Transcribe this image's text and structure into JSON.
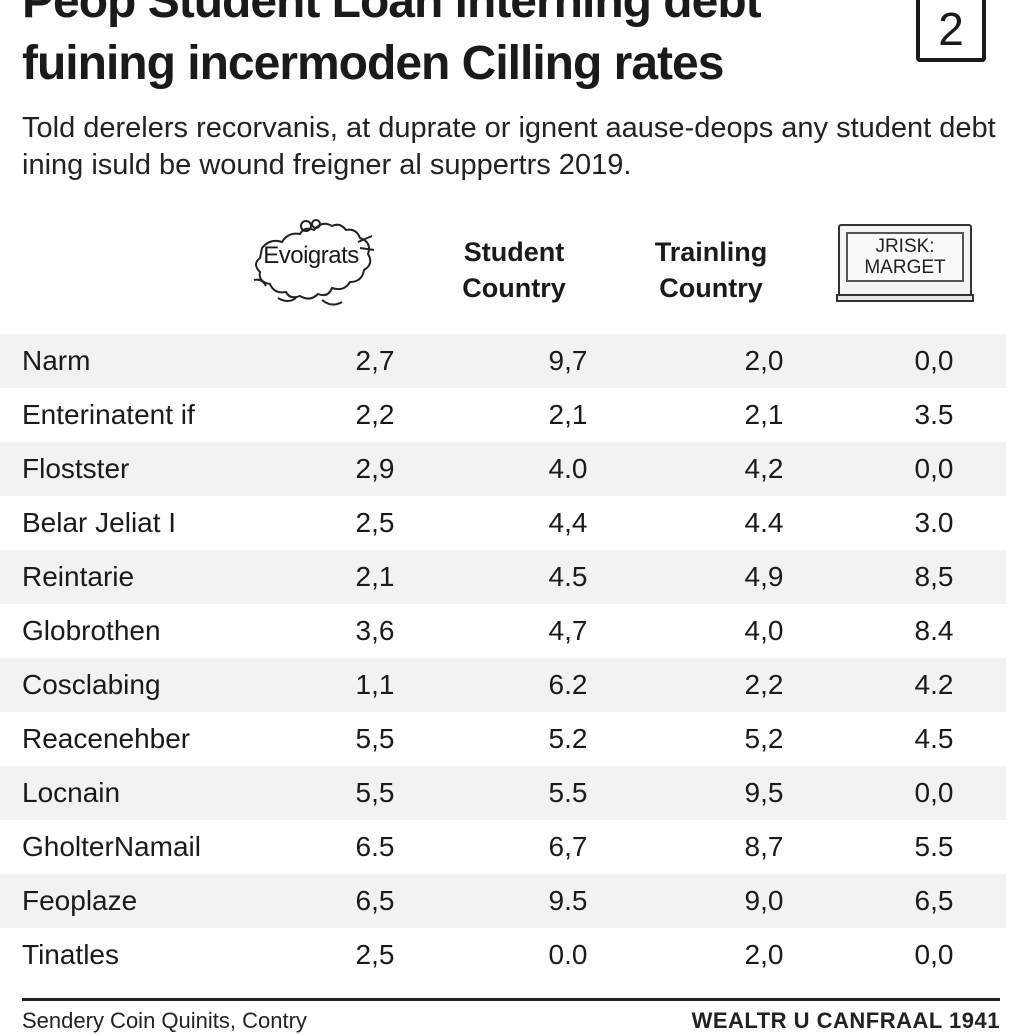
{
  "header": {
    "title_line1": "Peop Student Loan interning debt",
    "title_line2": "fuining incermoden Cilling rates",
    "badge": "2",
    "subtitle": "Told derelers recorvanis, at duprate or ignent aause-deops any student debt ining isuld be wound freigner al suppertrs 2019."
  },
  "icons": {
    "map": "map-icon",
    "market": "monitor-sign-icon"
  },
  "footer": {
    "left": "Sendery Coin Quinits, Contry",
    "right": "WEALTR U CANFRAAL 1941"
  },
  "chart_data": {
    "type": "table",
    "columns": [
      "Evoigrats",
      "Student Country",
      "Trainling Country",
      "JRISK: MARGET"
    ],
    "column_lines": [
      [
        "Evoigrats"
      ],
      [
        "Student",
        "Country"
      ],
      [
        "Trainling",
        "Country"
      ],
      [
        "JRISK:",
        "MARGET"
      ]
    ],
    "rows": [
      {
        "label": "Narm",
        "values": [
          "2,7",
          "9,7",
          "2,0",
          "0,0"
        ]
      },
      {
        "label": "Enterinatent if",
        "values": [
          "2,2",
          "2,1",
          "2,1",
          "3.5"
        ]
      },
      {
        "label": "Flostster",
        "values": [
          "2,9",
          "4.0",
          "4,2",
          "0,0"
        ]
      },
      {
        "label": "Belar Jeliat I",
        "values": [
          "2,5",
          "4,4",
          "4.4",
          "3.0"
        ]
      },
      {
        "label": "Reintarie",
        "values": [
          "2,1",
          "4.5",
          "4,9",
          "8,5"
        ]
      },
      {
        "label": "Globrothen",
        "values": [
          "3,6",
          "4,7",
          "4,0",
          "8.4"
        ]
      },
      {
        "label": "Cosclabing",
        "values": [
          "1,1",
          "6.2",
          "2,2",
          "4.2"
        ]
      },
      {
        "label": "Reacenehber",
        "values": [
          "5,5",
          "5.2",
          "5,2",
          "4.5"
        ]
      },
      {
        "label": "Locnain",
        "values": [
          "5,5",
          "5.5",
          "9,5",
          "0,0"
        ]
      },
      {
        "label": "GholterNamail",
        "values": [
          "6.5",
          "6,7",
          "8,7",
          "5.5"
        ]
      },
      {
        "label": "Feoplaze",
        "values": [
          "6,5",
          "9.5",
          "9,0",
          "6,5"
        ]
      },
      {
        "label": "Tinatles",
        "values": [
          "2,5",
          "0.0",
          "2,0",
          "0,0"
        ]
      }
    ]
  }
}
